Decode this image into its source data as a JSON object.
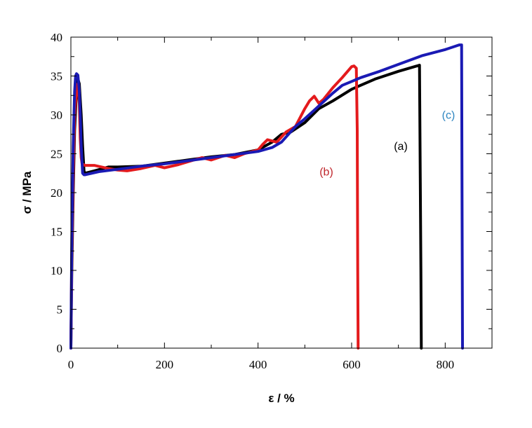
{
  "chart_data": {
    "type": "line",
    "xlabel": "ε / %",
    "ylabel": "σ / MPa",
    "xlim": [
      0,
      900
    ],
    "ylim": [
      0,
      40
    ],
    "xticks": [
      0,
      200,
      400,
      600,
      800
    ],
    "yticks": [
      0,
      5,
      10,
      15,
      20,
      25,
      30,
      35,
      40
    ],
    "grid": false,
    "annotations": [
      {
        "text": "(a)",
        "series": 0,
        "x": 705,
        "y": 25.5,
        "color": "#000000"
      },
      {
        "text": "(b)",
        "series": 1,
        "x": 546,
        "y": 22.2,
        "color": "#c0272d"
      },
      {
        "text": "(c)",
        "series": 2,
        "x": 807,
        "y": 29.5,
        "color": "#2e86c1"
      }
    ],
    "series": [
      {
        "color": "#000000",
        "x": [
          0,
          2,
          5,
          8,
          12,
          15,
          18,
          22,
          25,
          28,
          30,
          50,
          80,
          100,
          150,
          200,
          250,
          300,
          350,
          400,
          430,
          450,
          470,
          500,
          530,
          560,
          600,
          650,
          700,
          740,
          745,
          748,
          749
        ],
        "y": [
          0,
          10,
          20,
          28,
          33,
          34.6,
          34,
          30,
          26,
          22.8,
          22.5,
          22.8,
          23.3,
          23.3,
          23.4,
          23.8,
          24.2,
          24.6,
          24.9,
          25.5,
          26.5,
          27.5,
          27.8,
          29,
          30.8,
          31.8,
          33.3,
          34.6,
          35.6,
          36.3,
          36.4,
          10,
          0
        ]
      },
      {
        "color": "#e41a1c",
        "x": [
          0,
          2,
          5,
          8,
          12,
          15,
          18,
          20,
          22,
          24,
          30,
          50,
          80,
          100,
          120,
          150,
          180,
          200,
          230,
          280,
          300,
          330,
          350,
          370,
          400,
          410,
          420,
          440,
          460,
          480,
          500,
          510,
          520,
          530,
          540,
          560,
          580,
          600,
          605,
          610,
          612,
          613,
          614
        ],
        "y": [
          0,
          12,
          22,
          30,
          33.5,
          34,
          31.5,
          27,
          24.5,
          23.7,
          23.5,
          23.5,
          23.1,
          22.9,
          22.8,
          23.1,
          23.5,
          23.2,
          23.6,
          24.5,
          24.2,
          24.8,
          24.5,
          25,
          25.5,
          26.2,
          26.8,
          26.5,
          27.8,
          28.5,
          30.8,
          31.8,
          32.4,
          31.5,
          32,
          33.5,
          34.8,
          36.2,
          36.3,
          36,
          28,
          10,
          0
        ]
      },
      {
        "color": "#1a1ab4",
        "x": [
          0,
          2,
          5,
          8,
          10,
          12,
          15,
          18,
          20,
          22,
          25,
          28,
          30,
          60,
          100,
          150,
          200,
          250,
          300,
          350,
          400,
          430,
          450,
          480,
          500,
          520,
          540,
          560,
          580,
          600,
          620,
          660,
          700,
          750,
          800,
          830,
          835,
          836,
          837
        ],
        "y": [
          0,
          14,
          26,
          33,
          35,
          35.3,
          35.1,
          33,
          30,
          26,
          22.5,
          22.3,
          22.3,
          22.7,
          23,
          23.4,
          23.7,
          24.1,
          24.5,
          24.9,
          25.3,
          25.8,
          26.5,
          28.5,
          29.5,
          30.6,
          31.7,
          32.8,
          33.8,
          34.3,
          34.8,
          35.6,
          36.5,
          37.6,
          38.4,
          39,
          39,
          20,
          0
        ]
      }
    ]
  }
}
